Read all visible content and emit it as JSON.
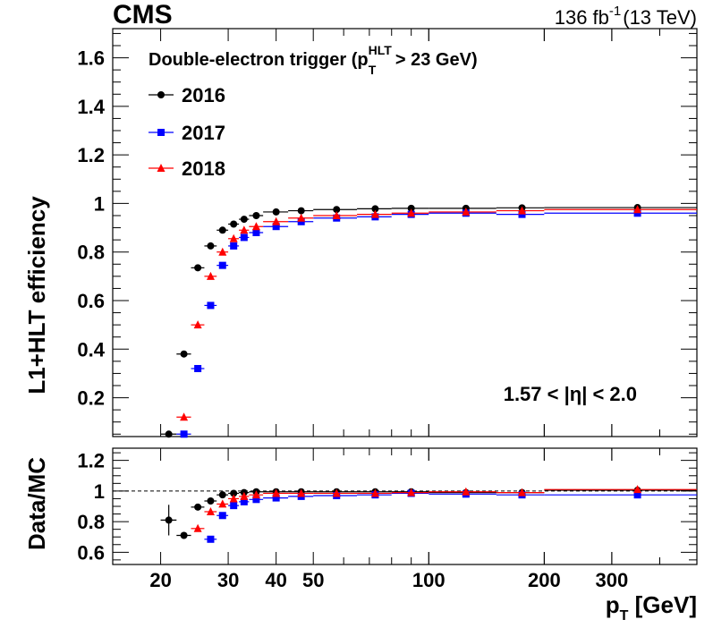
{
  "header": {
    "experiment": "CMS",
    "lumi_value": "136 fb",
    "lumi_exponent": "-1",
    "lumi_energy": "(13 TeV)"
  },
  "legend": {
    "title_main": "Double-electron trigger (p",
    "title_sup": "HLT",
    "title_sub": "T",
    "title_end": " > 23 GeV)"
  },
  "region_label": "1.57 < |η| < 2.0",
  "colors": {
    "2016": "#000000",
    "2017": "#0000ff",
    "2018": "#ff0000",
    "reference_line": "#000000"
  },
  "chart_data": [
    {
      "type": "scatter",
      "panel": "main",
      "ylabel": "L1+HLT efficiency",
      "xlabel": "",
      "xscale": "log",
      "xlim": [
        15,
        500
      ],
      "ylim": [
        0.04,
        1.72
      ],
      "y_ticks": [
        "0.2",
        "0.4",
        "0.6",
        "0.8",
        "1",
        "1.2",
        "1.4",
        "1.6"
      ],
      "legend_position": "top-left",
      "series": [
        {
          "name": "2016",
          "marker": "circle",
          "points": [
            {
              "x": 21,
              "xlo": 20,
              "xhi": 22,
              "y": 0.05
            },
            {
              "x": 23,
              "xlo": 22,
              "xhi": 24,
              "y": 0.38
            },
            {
              "x": 25,
              "xlo": 24,
              "xhi": 26,
              "y": 0.735
            },
            {
              "x": 27,
              "xlo": 26,
              "xhi": 28,
              "y": 0.825
            },
            {
              "x": 29,
              "xlo": 28,
              "xhi": 30,
              "y": 0.89
            },
            {
              "x": 31,
              "xlo": 30,
              "xhi": 32,
              "y": 0.915
            },
            {
              "x": 33,
              "xlo": 32,
              "xhi": 34,
              "y": 0.935
            },
            {
              "x": 35.5,
              "xlo": 34,
              "xhi": 37,
              "y": 0.95
            },
            {
              "x": 40,
              "xlo": 37,
              "xhi": 43,
              "y": 0.965
            },
            {
              "x": 46.5,
              "xlo": 43,
              "xhi": 50,
              "y": 0.97
            },
            {
              "x": 57.5,
              "xlo": 50,
              "xhi": 65,
              "y": 0.975
            },
            {
              "x": 72.5,
              "xlo": 65,
              "xhi": 80,
              "y": 0.978
            },
            {
              "x": 90,
              "xlo": 80,
              "xhi": 100,
              "y": 0.98
            },
            {
              "x": 125,
              "xlo": 100,
              "xhi": 150,
              "y": 0.98
            },
            {
              "x": 175,
              "xlo": 150,
              "xhi": 200,
              "y": 0.982
            },
            {
              "x": 350,
              "xlo": 200,
              "xhi": 500,
              "y": 0.983
            }
          ]
        },
        {
          "name": "2017",
          "marker": "square",
          "points": [
            {
              "x": 23,
              "xlo": 22,
              "xhi": 24,
              "y": 0.05
            },
            {
              "x": 25,
              "xlo": 24,
              "xhi": 26,
              "y": 0.32
            },
            {
              "x": 27,
              "xlo": 26,
              "xhi": 28,
              "y": 0.58
            },
            {
              "x": 29,
              "xlo": 28,
              "xhi": 30,
              "y": 0.745
            },
            {
              "x": 31,
              "xlo": 30,
              "xhi": 32,
              "y": 0.825
            },
            {
              "x": 33,
              "xlo": 32,
              "xhi": 34,
              "y": 0.86
            },
            {
              "x": 35.5,
              "xlo": 34,
              "xhi": 37,
              "y": 0.88
            },
            {
              "x": 40,
              "xlo": 37,
              "xhi": 43,
              "y": 0.905
            },
            {
              "x": 46.5,
              "xlo": 43,
              "xhi": 50,
              "y": 0.925
            },
            {
              "x": 57.5,
              "xlo": 50,
              "xhi": 65,
              "y": 0.94
            },
            {
              "x": 72.5,
              "xlo": 65,
              "xhi": 80,
              "y": 0.945
            },
            {
              "x": 90,
              "xlo": 80,
              "xhi": 100,
              "y": 0.955
            },
            {
              "x": 125,
              "xlo": 100,
              "xhi": 150,
              "y": 0.96
            },
            {
              "x": 175,
              "xlo": 150,
              "xhi": 200,
              "y": 0.955
            },
            {
              "x": 350,
              "xlo": 200,
              "xhi": 500,
              "y": 0.96
            }
          ]
        },
        {
          "name": "2018",
          "marker": "triangle",
          "points": [
            {
              "x": 23,
              "xlo": 22,
              "xhi": 24,
              "y": 0.12
            },
            {
              "x": 25,
              "xlo": 24,
              "xhi": 26,
              "y": 0.5
            },
            {
              "x": 27,
              "xlo": 26,
              "xhi": 28,
              "y": 0.7
            },
            {
              "x": 29,
              "xlo": 28,
              "xhi": 30,
              "y": 0.8
            },
            {
              "x": 31,
              "xlo": 30,
              "xhi": 32,
              "y": 0.855
            },
            {
              "x": 33,
              "xlo": 32,
              "xhi": 34,
              "y": 0.89
            },
            {
              "x": 35.5,
              "xlo": 34,
              "xhi": 37,
              "y": 0.905
            },
            {
              "x": 40,
              "xlo": 37,
              "xhi": 43,
              "y": 0.925
            },
            {
              "x": 46.5,
              "xlo": 43,
              "xhi": 50,
              "y": 0.94
            },
            {
              "x": 57.5,
              "xlo": 50,
              "xhi": 65,
              "y": 0.95
            },
            {
              "x": 72.5,
              "xlo": 65,
              "xhi": 80,
              "y": 0.955
            },
            {
              "x": 90,
              "xlo": 80,
              "xhi": 100,
              "y": 0.96
            },
            {
              "x": 125,
              "xlo": 100,
              "xhi": 150,
              "y": 0.965
            },
            {
              "x": 175,
              "xlo": 150,
              "xhi": 200,
              "y": 0.97
            },
            {
              "x": 350,
              "xlo": 200,
              "xhi": 500,
              "y": 0.975
            }
          ]
        }
      ]
    },
    {
      "type": "scatter",
      "panel": "ratio",
      "ylabel": "Data/MC",
      "xlabel": "p_T [GeV]",
      "xlabel_main": "p",
      "xlabel_sub": "T",
      "xlabel_end": " [GeV]",
      "xscale": "log",
      "xlim": [
        15,
        500
      ],
      "ylim": [
        0.52,
        1.28
      ],
      "y_ticks": [
        "0.6",
        "0.8",
        "1",
        "1.2"
      ],
      "x_ticks": [
        "20",
        "30",
        "40",
        "50",
        "100",
        "200",
        "300"
      ],
      "reference_line": 1,
      "series": [
        {
          "name": "2016",
          "marker": "circle",
          "points": [
            {
              "x": 21,
              "xlo": 20,
              "xhi": 22,
              "y": 0.81,
              "ylo": 0.71,
              "yhi": 0.91
            },
            {
              "x": 23,
              "xlo": 22,
              "xhi": 24,
              "y": 0.71,
              "ylo": 0.69,
              "yhi": 0.73
            },
            {
              "x": 25,
              "xlo": 24,
              "xhi": 26,
              "y": 0.895
            },
            {
              "x": 27,
              "xlo": 26,
              "xhi": 28,
              "y": 0.935
            },
            {
              "x": 29,
              "xlo": 28,
              "xhi": 30,
              "y": 0.975
            },
            {
              "x": 31,
              "xlo": 30,
              "xhi": 32,
              "y": 0.985
            },
            {
              "x": 33,
              "xlo": 32,
              "xhi": 34,
              "y": 0.99
            },
            {
              "x": 35.5,
              "xlo": 34,
              "xhi": 37,
              "y": 0.995
            },
            {
              "x": 40,
              "xlo": 37,
              "xhi": 43,
              "y": 0.995
            },
            {
              "x": 46.5,
              "xlo": 43,
              "xhi": 50,
              "y": 0.995
            },
            {
              "x": 57.5,
              "xlo": 50,
              "xhi": 65,
              "y": 0.995
            },
            {
              "x": 72.5,
              "xlo": 65,
              "xhi": 80,
              "y": 0.995
            },
            {
              "x": 90,
              "xlo": 80,
              "xhi": 100,
              "y": 0.995
            },
            {
              "x": 125,
              "xlo": 100,
              "xhi": 150,
              "y": 0.99
            },
            {
              "x": 175,
              "xlo": 150,
              "xhi": 200,
              "y": 0.99
            },
            {
              "x": 350,
              "xlo": 200,
              "xhi": 500,
              "y": 1.005
            }
          ]
        },
        {
          "name": "2017",
          "marker": "square",
          "points": [
            {
              "x": 27,
              "xlo": 26,
              "xhi": 28,
              "y": 0.685
            },
            {
              "x": 29,
              "xlo": 28,
              "xhi": 30,
              "y": 0.84
            },
            {
              "x": 31,
              "xlo": 30,
              "xhi": 32,
              "y": 0.905
            },
            {
              "x": 33,
              "xlo": 32,
              "xhi": 34,
              "y": 0.93
            },
            {
              "x": 35.5,
              "xlo": 34,
              "xhi": 37,
              "y": 0.945
            },
            {
              "x": 40,
              "xlo": 37,
              "xhi": 43,
              "y": 0.955
            },
            {
              "x": 46.5,
              "xlo": 43,
              "xhi": 50,
              "y": 0.965
            },
            {
              "x": 57.5,
              "xlo": 50,
              "xhi": 65,
              "y": 0.97
            },
            {
              "x": 72.5,
              "xlo": 65,
              "xhi": 80,
              "y": 0.975
            },
            {
              "x": 90,
              "xlo": 80,
              "xhi": 100,
              "y": 0.985
            },
            {
              "x": 125,
              "xlo": 100,
              "xhi": 150,
              "y": 0.98
            },
            {
              "x": 175,
              "xlo": 150,
              "xhi": 200,
              "y": 0.975
            },
            {
              "x": 350,
              "xlo": 200,
              "xhi": 500,
              "y": 0.975
            }
          ]
        },
        {
          "name": "2018",
          "marker": "triangle",
          "points": [
            {
              "x": 25,
              "xlo": 24,
              "xhi": 26,
              "y": 0.755
            },
            {
              "x": 27,
              "xlo": 26,
              "xhi": 28,
              "y": 0.865
            },
            {
              "x": 29,
              "xlo": 28,
              "xhi": 30,
              "y": 0.915
            },
            {
              "x": 31,
              "xlo": 30,
              "xhi": 32,
              "y": 0.95
            },
            {
              "x": 33,
              "xlo": 32,
              "xhi": 34,
              "y": 0.965
            },
            {
              "x": 35.5,
              "xlo": 34,
              "xhi": 37,
              "y": 0.975
            },
            {
              "x": 40,
              "xlo": 37,
              "xhi": 43,
              "y": 0.985
            },
            {
              "x": 46.5,
              "xlo": 43,
              "xhi": 50,
              "y": 0.985
            },
            {
              "x": 57.5,
              "xlo": 50,
              "xhi": 65,
              "y": 0.985
            },
            {
              "x": 72.5,
              "xlo": 65,
              "xhi": 80,
              "y": 0.985
            },
            {
              "x": 90,
              "xlo": 80,
              "xhi": 100,
              "y": 0.99
            },
            {
              "x": 125,
              "xlo": 100,
              "xhi": 150,
              "y": 0.995
            },
            {
              "x": 175,
              "xlo": 150,
              "xhi": 200,
              "y": 0.99
            },
            {
              "x": 350,
              "xlo": 200,
              "xhi": 500,
              "y": 1.01
            }
          ]
        }
      ]
    }
  ]
}
